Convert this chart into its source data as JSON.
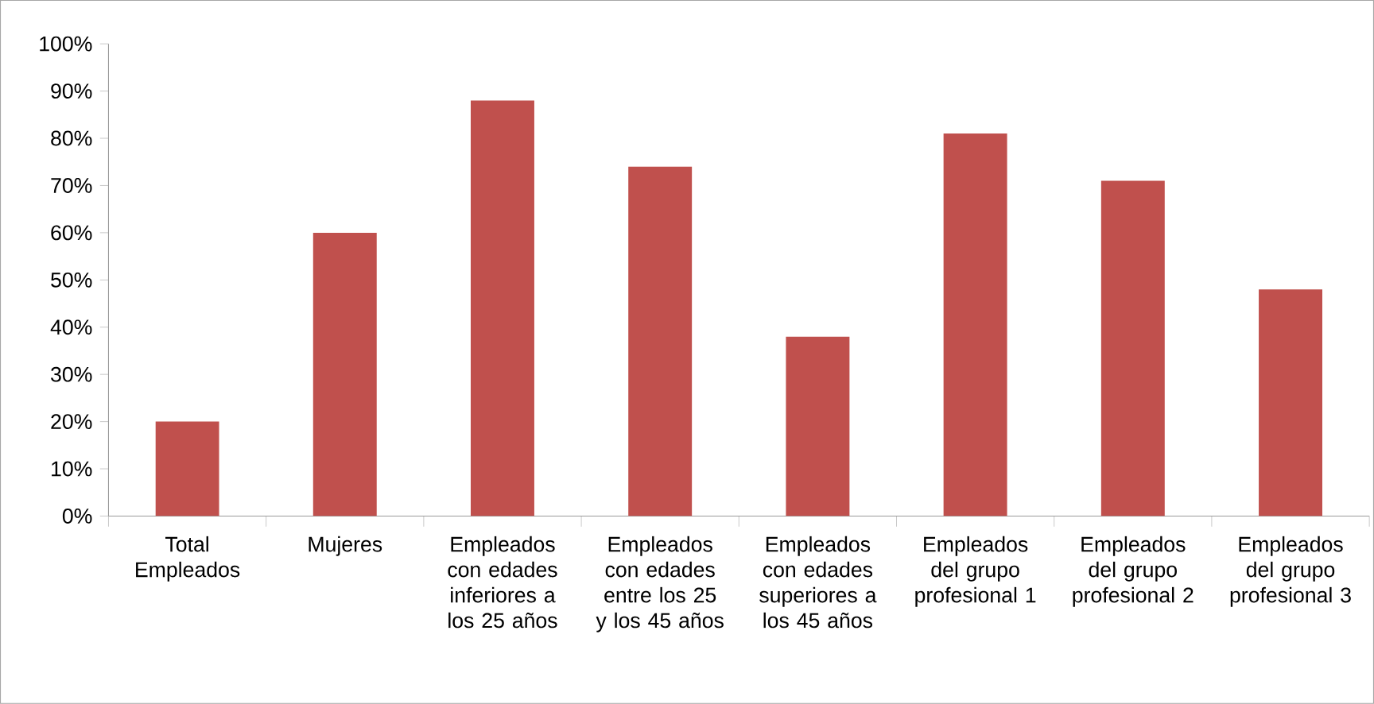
{
  "chart_data": {
    "type": "bar",
    "categories": [
      "Total Empleados",
      "Mujeres",
      "Empleados con edades inferiores a los 25 años",
      "Empleados con edades entre los 25 y los 45 años",
      "Empleados con edades superiores a los 45 años",
      "Empleados del grupo profesional 1",
      "Empleados del grupo profesional 2",
      "Empleados del grupo profesional 3"
    ],
    "values": [
      20,
      60,
      88,
      74,
      38,
      81,
      71,
      48
    ],
    "color": "#c0504d",
    "ylim": [
      0,
      100
    ],
    "yticks": [
      {
        "value": 0,
        "label": "0%"
      },
      {
        "value": 10,
        "label": "10%"
      },
      {
        "value": 20,
        "label": "20%"
      },
      {
        "value": 30,
        "label": "30%"
      },
      {
        "value": 40,
        "label": "40%"
      },
      {
        "value": 50,
        "label": "50%"
      },
      {
        "value": 60,
        "label": "60%"
      },
      {
        "value": 70,
        "label": "70%"
      },
      {
        "value": 80,
        "label": "80%"
      },
      {
        "value": 90,
        "label": "90%"
      },
      {
        "value": 100,
        "label": "100%"
      }
    ]
  }
}
